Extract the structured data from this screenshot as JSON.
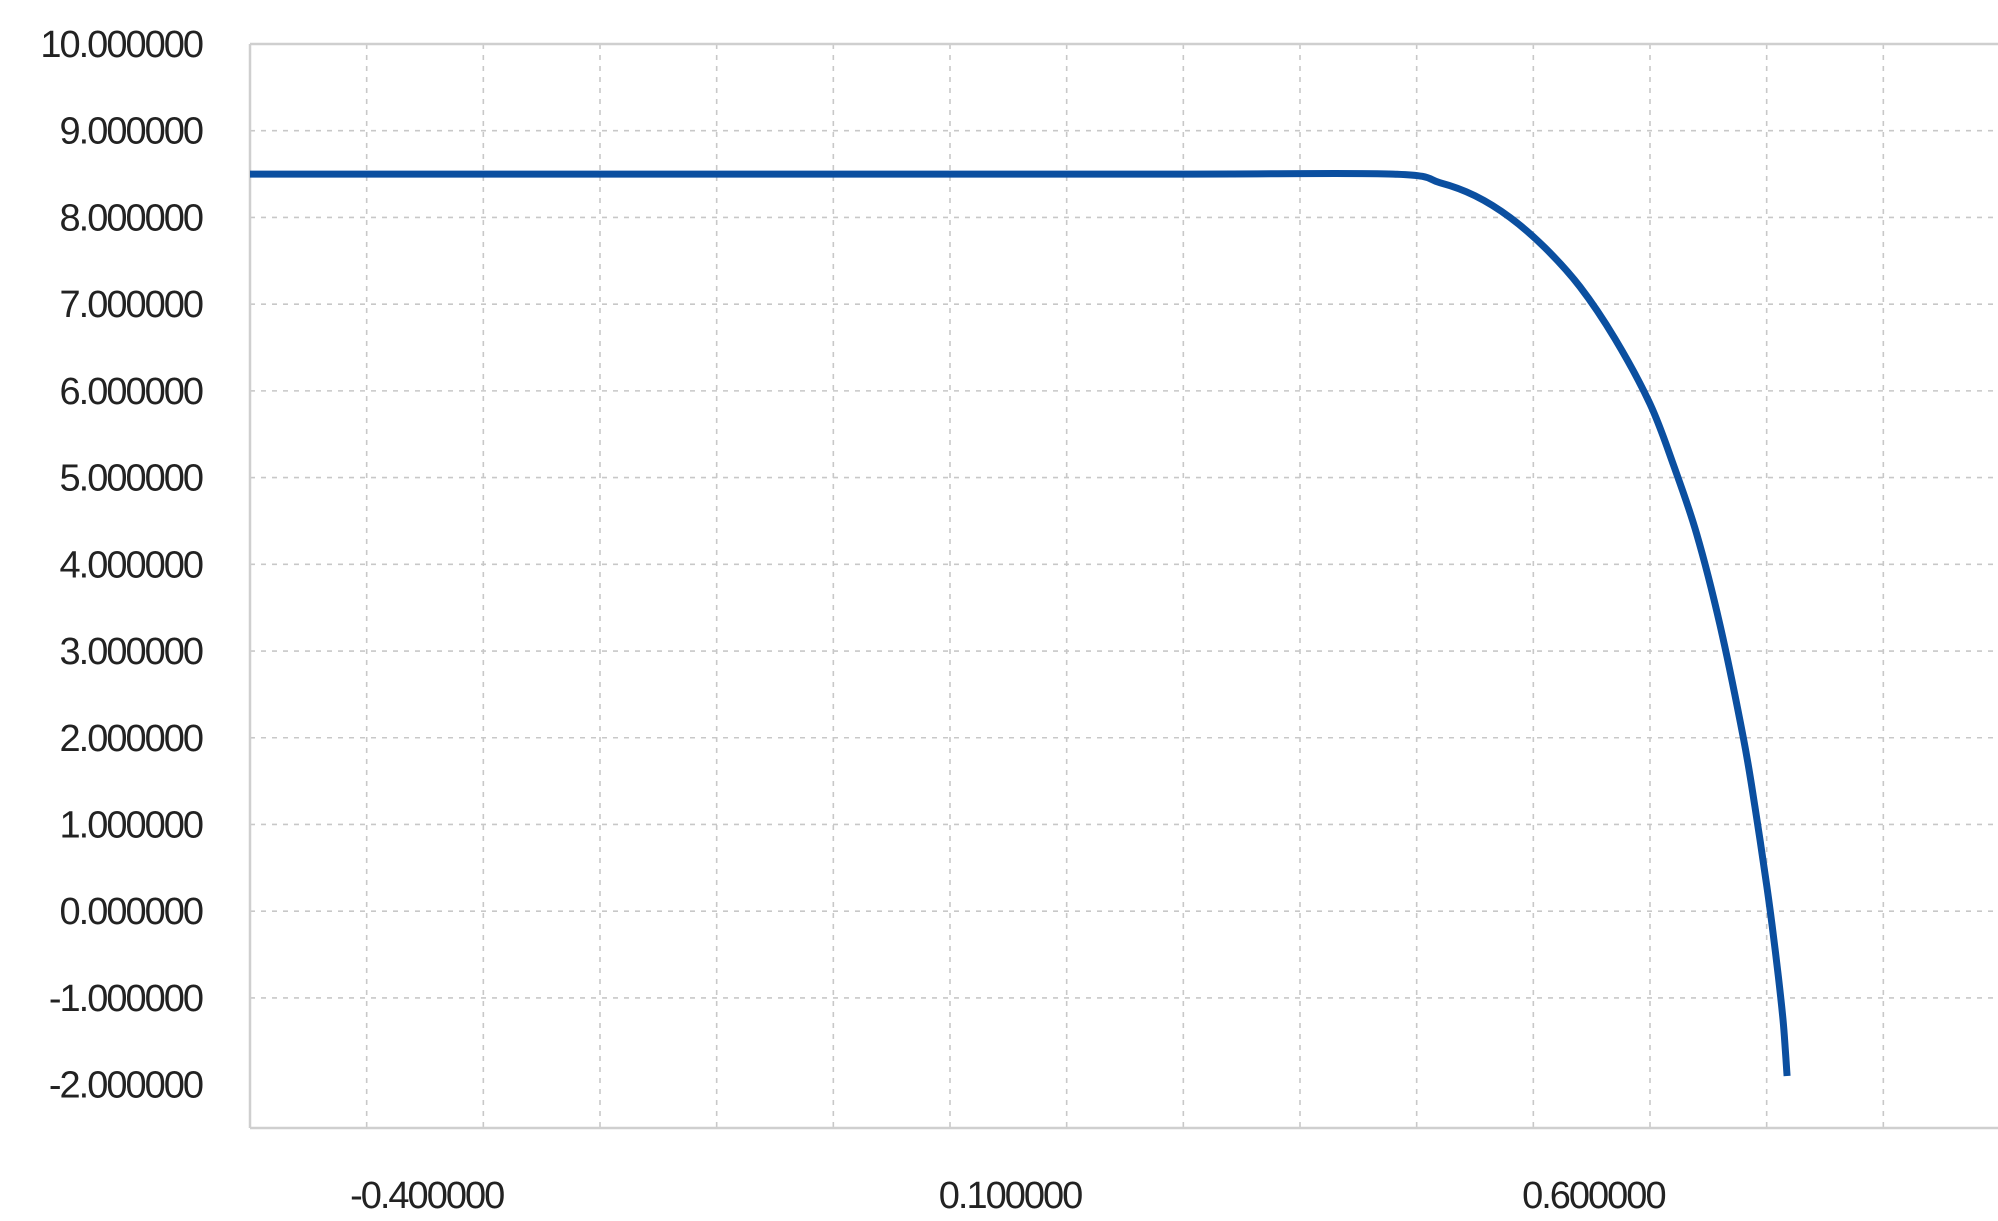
{
  "chart_data": {
    "type": "line",
    "title": "",
    "xlabel": "",
    "ylabel": "",
    "xlim": [
      -0.5,
      1.0
    ],
    "ylim": [
      -2.5,
      10.0
    ],
    "grid": true,
    "x_tick_labels": [
      {
        "value": -0.4,
        "label": "-0.400000"
      },
      {
        "value": 0.1,
        "label": "0.100000"
      },
      {
        "value": 0.6,
        "label": "0.600000"
      }
    ],
    "y_tick_labels": [
      {
        "value": 10,
        "label": "10.000000"
      },
      {
        "value": 9,
        "label": "9.000000"
      },
      {
        "value": 8,
        "label": "8.000000"
      },
      {
        "value": 7,
        "label": "7.000000"
      },
      {
        "value": 6,
        "label": "6.000000"
      },
      {
        "value": 5,
        "label": "5.000000"
      },
      {
        "value": 4,
        "label": "4.000000"
      },
      {
        "value": 3,
        "label": "3.000000"
      },
      {
        "value": 2,
        "label": "2.000000"
      },
      {
        "value": 1,
        "label": "1.000000"
      },
      {
        "value": 0,
        "label": "0.000000"
      },
      {
        "value": -1,
        "label": "-1.000000"
      },
      {
        "value": -2,
        "label": "-2.000000"
      }
    ],
    "x_gridlines": [
      -0.4,
      -0.3,
      -0.2,
      -0.1,
      0.0,
      0.1,
      0.2,
      0.3,
      0.4,
      0.5,
      0.6,
      0.7,
      0.8,
      0.9,
      1.0
    ],
    "y_gridlines": [
      -1,
      0,
      1,
      2,
      3,
      4,
      5,
      6,
      7,
      8,
      9,
      10
    ],
    "series": [
      {
        "color": "#0b4fa0",
        "x": [
          -0.5,
          0.0,
          0.3,
          0.48,
          0.52,
          0.55,
          0.58,
          0.61,
          0.64,
          0.67,
          0.7,
          0.72,
          0.74,
          0.76,
          0.78,
          0.79,
          0.8,
          0.805,
          0.81,
          0.814,
          0.816,
          0.8175
        ],
        "y": [
          8.5,
          8.5,
          8.5,
          8.5,
          8.4,
          8.25,
          8.0,
          7.65,
          7.2,
          6.6,
          5.85,
          5.15,
          4.35,
          3.3,
          2.0,
          1.2,
          0.3,
          -0.2,
          -0.75,
          -1.25,
          -1.6,
          -1.9
        ]
      }
    ]
  }
}
